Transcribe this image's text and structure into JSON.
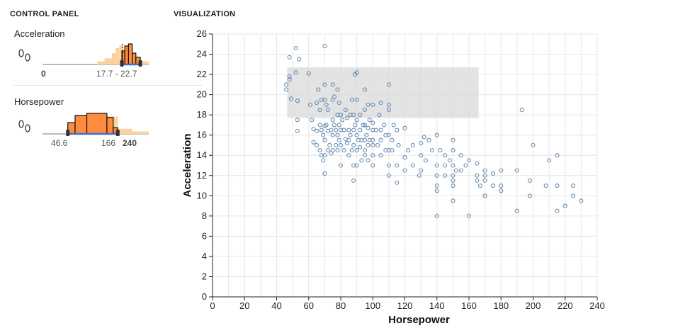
{
  "control_panel": {
    "title": "CONTROL PANEL",
    "acceleration": {
      "label": "Acceleration",
      "min_label": "0",
      "range_label": "17.7 - 22.7",
      "selected_range": [
        17.7,
        22.7
      ]
    },
    "horsepower": {
      "label": "Horsepower",
      "lo_label": "46.6",
      "hi_label": "166",
      "max_label": "240",
      "selected_range": [
        46.6,
        166
      ]
    }
  },
  "visualization": {
    "title": "VISUALIZATION"
  },
  "colors": {
    "histogram_fill": "#fd8d3c",
    "histogram_unselected": "#fdd0a2",
    "point_stroke": "#4c78a8",
    "brush_fill": "#d9d9d9"
  },
  "chart_data": {
    "type": "scatter",
    "xlabel": "Horsepower",
    "ylabel": "Acceleration",
    "xlim": [
      0,
      240
    ],
    "ylim": [
      0,
      26
    ],
    "x_ticks": [
      "0",
      "20",
      "40",
      "60",
      "80",
      "100",
      "120",
      "140",
      "160",
      "180",
      "200",
      "220",
      "240"
    ],
    "y_ticks": [
      "0",
      "2",
      "4",
      "6",
      "8",
      "10",
      "12",
      "14",
      "16",
      "18",
      "20",
      "22",
      "24",
      "26"
    ],
    "grid": true,
    "brush": {
      "x": [
        46.6,
        166
      ],
      "y": [
        17.7,
        22.7
      ]
    },
    "points": [
      [
        46,
        21
      ],
      [
        46,
        20.5
      ],
      [
        48,
        23.7
      ],
      [
        48,
        21.8
      ],
      [
        48,
        21.5
      ],
      [
        49,
        19.6
      ],
      [
        52,
        24.6
      ],
      [
        52,
        22.2
      ],
      [
        53,
        19.4
      ],
      [
        53,
        17.5
      ],
      [
        53,
        16.4
      ],
      [
        54,
        23.5
      ],
      [
        60,
        22.1
      ],
      [
        61,
        19
      ],
      [
        62,
        17.5
      ],
      [
        63,
        16.6
      ],
      [
        63,
        15.3
      ],
      [
        65,
        19.2
      ],
      [
        65,
        16.4
      ],
      [
        65,
        15
      ],
      [
        66,
        20.5
      ],
      [
        67,
        18.5
      ],
      [
        67,
        17
      ],
      [
        67,
        14.5
      ],
      [
        68,
        19.5
      ],
      [
        68,
        16.5
      ],
      [
        68,
        14
      ],
      [
        69,
        16
      ],
      [
        69,
        13.5
      ],
      [
        70,
        24.8
      ],
      [
        70,
        21
      ],
      [
        70,
        19.5
      ],
      [
        70,
        16.9
      ],
      [
        70,
        15.5
      ],
      [
        70,
        14
      ],
      [
        70,
        12.2
      ],
      [
        71,
        19
      ],
      [
        71,
        17
      ],
      [
        72,
        18.5
      ],
      [
        72,
        16.4
      ],
      [
        72,
        14.5
      ],
      [
        73,
        15
      ],
      [
        74,
        16.5
      ],
      [
        74,
        14.2
      ],
      [
        75,
        21
      ],
      [
        75,
        19.5
      ],
      [
        75,
        17.5
      ],
      [
        75,
        16
      ],
      [
        75,
        14.5
      ],
      [
        76,
        19.8
      ],
      [
        76,
        17
      ],
      [
        77,
        16.5
      ],
      [
        77,
        15
      ],
      [
        78,
        20.5
      ],
      [
        78,
        18
      ],
      [
        78,
        16
      ],
      [
        78,
        14.5
      ],
      [
        79,
        19.2
      ],
      [
        79,
        17
      ],
      [
        79,
        15.5
      ],
      [
        80,
        18
      ],
      [
        80,
        16.5
      ],
      [
        80,
        15
      ],
      [
        80,
        13
      ],
      [
        81,
        17.5
      ],
      [
        82,
        16.5
      ],
      [
        82,
        14.5
      ],
      [
        83,
        18.5
      ],
      [
        83,
        15.6
      ],
      [
        84,
        17.7
      ],
      [
        84,
        15.2
      ],
      [
        85,
        16.5
      ],
      [
        85,
        15.5
      ],
      [
        85,
        14
      ],
      [
        86,
        18
      ],
      [
        86,
        16
      ],
      [
        87,
        19.5
      ],
      [
        87,
        14.5
      ],
      [
        88,
        18
      ],
      [
        88,
        16.5
      ],
      [
        88,
        15
      ],
      [
        88,
        13
      ],
      [
        88,
        11.5
      ],
      [
        89,
        22
      ],
      [
        89,
        17
      ],
      [
        90,
        22.2
      ],
      [
        90,
        19.5
      ],
      [
        90,
        17.5
      ],
      [
        90,
        16
      ],
      [
        90,
        14.5
      ],
      [
        90,
        13
      ],
      [
        91,
        15.5
      ],
      [
        92,
        18
      ],
      [
        92,
        16.5
      ],
      [
        92,
        14.8
      ],
      [
        93,
        15.5
      ],
      [
        93,
        13.5
      ],
      [
        94,
        17
      ],
      [
        95,
        20.5
      ],
      [
        95,
        18.5
      ],
      [
        95,
        17
      ],
      [
        95,
        15.5
      ],
      [
        95,
        14.5
      ],
      [
        95,
        14
      ],
      [
        96,
        16
      ],
      [
        97,
        19
      ],
      [
        97,
        16.7
      ],
      [
        97,
        15
      ],
      [
        97,
        13.5
      ],
      [
        98,
        17.5
      ],
      [
        98,
        15.5
      ],
      [
        100,
        19
      ],
      [
        100,
        17.2
      ],
      [
        100,
        16.5
      ],
      [
        100,
        15.5
      ],
      [
        100,
        15
      ],
      [
        100,
        14
      ],
      [
        100,
        13
      ],
      [
        102,
        16.5
      ],
      [
        103,
        15
      ],
      [
        104,
        18
      ],
      [
        105,
        19.2
      ],
      [
        105,
        16.5
      ],
      [
        105,
        15.5
      ],
      [
        105,
        14
      ],
      [
        107,
        17
      ],
      [
        108,
        16
      ],
      [
        108,
        14.5
      ],
      [
        110,
        21
      ],
      [
        110,
        19
      ],
      [
        110,
        18.5
      ],
      [
        110,
        16
      ],
      [
        110,
        14.5
      ],
      [
        110,
        13
      ],
      [
        110,
        12
      ],
      [
        112,
        15.5
      ],
      [
        112,
        14.5
      ],
      [
        113,
        17
      ],
      [
        115,
        16.5
      ],
      [
        115,
        13
      ],
      [
        115,
        11.3
      ],
      [
        116,
        15
      ],
      [
        120,
        16.7
      ],
      [
        120,
        13.8
      ],
      [
        120,
        12.5
      ],
      [
        122,
        14.5
      ],
      [
        125,
        15
      ],
      [
        125,
        13
      ],
      [
        129,
        12
      ],
      [
        130,
        15.2
      ],
      [
        130,
        14
      ],
      [
        130,
        12.5
      ],
      [
        132,
        15.8
      ],
      [
        133,
        13.5
      ],
      [
        135,
        15.5
      ],
      [
        137,
        14.5
      ],
      [
        140,
        16
      ],
      [
        140,
        13
      ],
      [
        140,
        12
      ],
      [
        140,
        11
      ],
      [
        140,
        10.5
      ],
      [
        140,
        8
      ],
      [
        142,
        14.5
      ],
      [
        145,
        14
      ],
      [
        145,
        13
      ],
      [
        145,
        12
      ],
      [
        148,
        13.5
      ],
      [
        150,
        15.5
      ],
      [
        150,
        14.5
      ],
      [
        150,
        13
      ],
      [
        150,
        12
      ],
      [
        150,
        11.5
      ],
      [
        150,
        11
      ],
      [
        150,
        9.5
      ],
      [
        152,
        12.5
      ],
      [
        155,
        14
      ],
      [
        155,
        12.5
      ],
      [
        158,
        13
      ],
      [
        160,
        13.5
      ],
      [
        160,
        8
      ],
      [
        165,
        13.2
      ],
      [
        165,
        12
      ],
      [
        165,
        11.5
      ],
      [
        167,
        11
      ],
      [
        170,
        12.5
      ],
      [
        170,
        12
      ],
      [
        170,
        11.5
      ],
      [
        170,
        10
      ],
      [
        175,
        12.2
      ],
      [
        175,
        11
      ],
      [
        180,
        12.5
      ],
      [
        180,
        11
      ],
      [
        180,
        10.5
      ],
      [
        190,
        12.5
      ],
      [
        190,
        8.5
      ],
      [
        193,
        18.5
      ],
      [
        198,
        11.5
      ],
      [
        198,
        10
      ],
      [
        200,
        15
      ],
      [
        208,
        11
      ],
      [
        210,
        13.5
      ],
      [
        215,
        14
      ],
      [
        215,
        11
      ],
      [
        215,
        8.5
      ],
      [
        220,
        9
      ],
      [
        225,
        11
      ],
      [
        225,
        10
      ],
      [
        230,
        9.5
      ]
    ]
  },
  "accel_hist": {
    "bins_total": [
      [
        11,
        0.15
      ],
      [
        13,
        0.3
      ],
      [
        15,
        0.55
      ],
      [
        16,
        0.8
      ],
      [
        17,
        0.95
      ],
      [
        18,
        0.7
      ],
      [
        19,
        0.45
      ],
      [
        21,
        0.25
      ],
      [
        23,
        0.15
      ]
    ],
    "bins_selected": [
      [
        17.7,
        0.65
      ],
      [
        18.5,
        0.9
      ],
      [
        19.5,
        1.0
      ],
      [
        20.5,
        0.55
      ],
      [
        21.5,
        0.35
      ]
    ]
  },
  "hp_hist": {
    "bins_total": [
      [
        46,
        0.55
      ],
      [
        64,
        0.9
      ],
      [
        92,
        1.0
      ],
      [
        130,
        0.85
      ],
      [
        166,
        0.25
      ],
      [
        200,
        0.12
      ]
    ],
    "bins_selected": [
      [
        46.6,
        0.55
      ],
      [
        64,
        0.9
      ],
      [
        92,
        1.0
      ],
      [
        140,
        0.8
      ],
      [
        155,
        0.3
      ]
    ]
  }
}
